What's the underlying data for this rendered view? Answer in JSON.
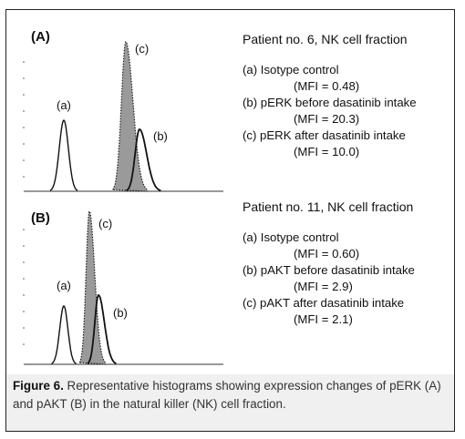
{
  "chart_data": [
    {
      "type": "area",
      "panel_label": "(A)",
      "title": "Patient no. 6, NK cell fraction",
      "series": [
        {
          "name": "(a) Isotype control",
          "label": "(a)",
          "mfi_text": "(MFI = 0.48)",
          "mfi": 0.48,
          "style": "solid-black"
        },
        {
          "name": "(b) pERK before dasatinib intake",
          "label": "(b)",
          "mfi_text": "(MFI = 20.3)",
          "mfi": 20.3,
          "style": "solid-black"
        },
        {
          "name": "(c) pERK after dasatinib intake",
          "label": "(c)",
          "mfi_text": "(MFI = 10.0)",
          "mfi": 10.0,
          "style": "dotted-grey-fill"
        }
      ]
    },
    {
      "type": "area",
      "panel_label": "(B)",
      "title": "Patient no. 11, NK cell fraction",
      "series": [
        {
          "name": "(a) Isotype control",
          "label": "(a)",
          "mfi_text": "(MFI = 0.60)",
          "mfi": 0.6,
          "style": "solid-black"
        },
        {
          "name": "(b) pAKT before dasatinib intake",
          "label": "(b)",
          "mfi_text": "(MFI = 2.9)",
          "mfi": 2.9,
          "style": "solid-black"
        },
        {
          "name": "(c) pAKT after dasatinib intake",
          "label": "(c)",
          "mfi_text": "(MFI = 2.1)",
          "mfi": 2.1,
          "style": "dotted-grey-fill"
        }
      ]
    }
  ],
  "caption": {
    "label": "Figure 6.",
    "text": "Representative histograms showing expression changes of pERK (A) and pAKT (B) in the natural killer (NK) cell fraction."
  },
  "colors": {
    "fill_after": "#9a9a9a",
    "caption_bg": "#f0f0f0"
  }
}
